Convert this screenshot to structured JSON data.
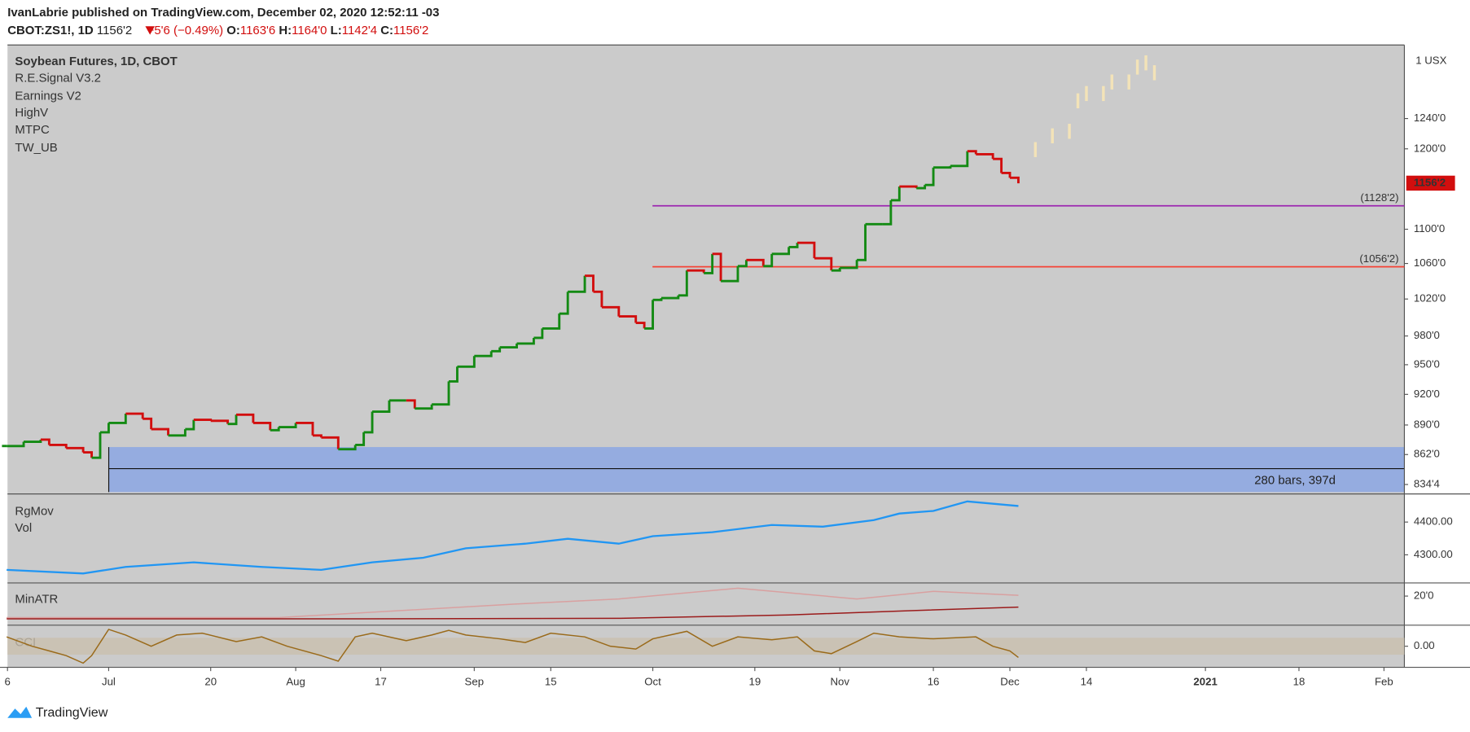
{
  "header": {
    "publisher": "IvanLabrie published on TradingView.com, December 02, 2020 12:52:11 -03",
    "symbol": "CBOT:ZS1!, 1D",
    "last": "1156'2",
    "change": "−5'6 (−0.49%)",
    "ohlc": [
      {
        "label": "O:",
        "value": "1163'6"
      },
      {
        "label": "H:",
        "value": "1164'0"
      },
      {
        "label": "L:",
        "value": "1142'4"
      },
      {
        "label": "C:",
        "value": "1156'2"
      }
    ]
  },
  "chart_data": [
    {
      "type": "line",
      "title": "Soybean Futures, 1D, CBOT",
      "indicators": [
        "R.E.Signal V3.2",
        "Earnings V2",
        "HighV",
        "MTPC",
        "TW_UB"
      ],
      "unit": "1 USX",
      "log_scale": true,
      "xlim": [
        -11.9,
        152.4
      ],
      "ylim": [
        827.7,
        1340
      ],
      "xticks": [
        {
          "value": -11.9,
          "label": "6"
        },
        {
          "value": 0,
          "label": "Jul"
        },
        {
          "value": 12,
          "label": "20"
        },
        {
          "value": 22,
          "label": "Aug"
        },
        {
          "value": 32,
          "label": "17"
        },
        {
          "value": 43,
          "label": "Sep"
        },
        {
          "value": 52,
          "label": "15"
        },
        {
          "value": 64,
          "label": "Oct"
        },
        {
          "value": 76,
          "label": "19"
        },
        {
          "value": 86,
          "label": "Nov"
        },
        {
          "value": 97,
          "label": "16"
        },
        {
          "value": 106,
          "label": "Dec"
        },
        {
          "value": 115,
          "label": "14"
        },
        {
          "value": 129,
          "label": "2021"
        },
        {
          "value": 140,
          "label": "18"
        },
        {
          "value": 150,
          "label": "Feb"
        }
      ],
      "yticks": [
        {
          "value": 834.5,
          "label": "834'4"
        },
        {
          "value": 862,
          "label": "862'0"
        },
        {
          "value": 890,
          "label": "890'0"
        },
        {
          "value": 920,
          "label": "920'0"
        },
        {
          "value": 950,
          "label": "950'0"
        },
        {
          "value": 980,
          "label": "980'0"
        },
        {
          "value": 1020,
          "label": "1020'0"
        },
        {
          "value": 1060,
          "label": "1060'0"
        },
        {
          "value": 1100,
          "label": "1100'0"
        },
        {
          "value": 1200,
          "label": "1200'0"
        },
        {
          "value": 1240,
          "label": "1240'0"
        }
      ],
      "series": [
        {
          "color": "#138a13",
          "down_color": "#d20e0e",
          "x": [
            -12,
            -10,
            -8,
            -7,
            -5,
            -3,
            -2,
            -1,
            0,
            2,
            4,
            5,
            7,
            9,
            10,
            12,
            14,
            15,
            17,
            19,
            20,
            22,
            24,
            25,
            27,
            29,
            30,
            31,
            33,
            35,
            36,
            38,
            40,
            41,
            43,
            45,
            46,
            48,
            50,
            51,
            53,
            54,
            56,
            57,
            58,
            60,
            62,
            63,
            64,
            65,
            67,
            68,
            70,
            71,
            72,
            74,
            75,
            77,
            78,
            80,
            81,
            83,
            85,
            86,
            88,
            89,
            91,
            92,
            93,
            95,
            96,
            97,
            99,
            101,
            102,
            104,
            105,
            106,
            107
          ],
          "values": [
            870,
            874,
            876,
            871,
            868,
            864,
            859,
            883,
            892,
            901,
            896,
            886,
            880,
            886,
            895,
            894,
            891,
            900,
            892,
            885,
            888,
            892,
            880,
            878,
            867,
            871,
            883,
            903,
            914,
            914,
            906,
            910,
            933,
            948,
            959,
            964,
            968,
            972,
            978,
            988,
            1004,
            1028,
            1046,
            1028,
            1011,
            1001,
            994,
            988,
            1019,
            1021,
            1024,
            1052,
            1049,
            1071,
            1040,
            1057,
            1064,
            1057,
            1071,
            1079,
            1084,
            1066,
            1052,
            1055,
            1064,
            1106,
            1106,
            1135,
            1152,
            1150,
            1154,
            1176,
            1178,
            1197,
            1193,
            1187,
            1169,
            1163,
            1156
          ]
        },
        {
          "color": "#f3e3b8",
          "x": [
            109,
            111,
            113,
            114,
            115,
            117,
            118,
            120,
            121,
            122,
            123
          ],
          "values": [
            1199,
            1217,
            1223,
            1264,
            1274,
            1274,
            1290,
            1290,
            1311,
            1317,
            1303
          ]
        }
      ],
      "levels": [
        {
          "value": 1128.25,
          "label": "(1128'2)",
          "color": "#9c27b0"
        },
        {
          "value": 1056.25,
          "label": "(1056'2)",
          "color": "#f44336"
        }
      ],
      "last_price": {
        "value": 1156.25,
        "label": "1156'2",
        "color": "#d20e0e"
      },
      "annotation": "280 bars, 397d"
    },
    {
      "type": "line",
      "labels": [
        "RgMov",
        "Vol"
      ],
      "ylim": [
        4214,
        4483
      ],
      "yticks": [
        {
          "value": 4400,
          "label": "4400.00"
        },
        {
          "value": 4300,
          "label": "4300.00"
        }
      ],
      "series": [
        {
          "color": "#2196f3",
          "x": [
            -12,
            -3,
            2,
            10,
            18,
            25,
            31,
            37,
            42,
            49,
            54,
            60,
            64,
            71,
            78,
            84,
            90,
            93,
            97,
            101,
            107
          ],
          "values": [
            4254,
            4243,
            4263,
            4277,
            4263,
            4254,
            4277,
            4291,
            4320,
            4334,
            4349,
            4334,
            4357,
            4369,
            4391,
            4386,
            4406,
            4426,
            4434,
            4463,
            4449
          ]
        }
      ]
    },
    {
      "type": "line",
      "labels": [
        "MinATR"
      ],
      "ylim": [
        8.9,
        25
      ],
      "yticks": [
        {
          "value": 20,
          "label": "20'0"
        }
      ],
      "series": [
        {
          "color": "#d9a0a0",
          "x": [
            -12,
            20,
            48,
            60,
            74,
            88,
            97,
            107
          ],
          "values": [
            11.8,
            11.8,
            17,
            18.9,
            23,
            18.9,
            21.8,
            20.3
          ]
        },
        {
          "color": "#9b1b1b",
          "x": [
            -12,
            30,
            60,
            80,
            95,
            107
          ],
          "values": [
            11.3,
            11.3,
            11.5,
            12.8,
            14.5,
            15.8
          ]
        }
      ]
    },
    {
      "type": "line",
      "labels": [
        "CCI"
      ],
      "ylim": [
        -250,
        250
      ],
      "yticks": [
        {
          "value": 0,
          "label": "0.00"
        }
      ],
      "band": [
        -100,
        100
      ],
      "series": [
        {
          "color": "#9a6a1a",
          "x": [
            -12,
            -9,
            -7,
            -5,
            -3,
            -2,
            0,
            2,
            5,
            8,
            11,
            15,
            18,
            21,
            25,
            27,
            29,
            31,
            35,
            38,
            40,
            42,
            46,
            49,
            52,
            56,
            59,
            62,
            64,
            68,
            71,
            74,
            78,
            81,
            83,
            85,
            88,
            90,
            93,
            97,
            102,
            104,
            106,
            107
          ],
          "values": [
            111,
            0,
            -55,
            -111,
            -200,
            -111,
            200,
            133,
            0,
            133,
            155,
            55,
            111,
            0,
            -111,
            -177,
            111,
            155,
            66,
            133,
            188,
            133,
            88,
            44,
            155,
            111,
            0,
            -33,
            88,
            177,
            0,
            111,
            77,
            111,
            -55,
            -88,
            55,
            155,
            111,
            88,
            111,
            0,
            -55,
            -133
          ]
        }
      ]
    }
  ],
  "footer": "TradingView"
}
